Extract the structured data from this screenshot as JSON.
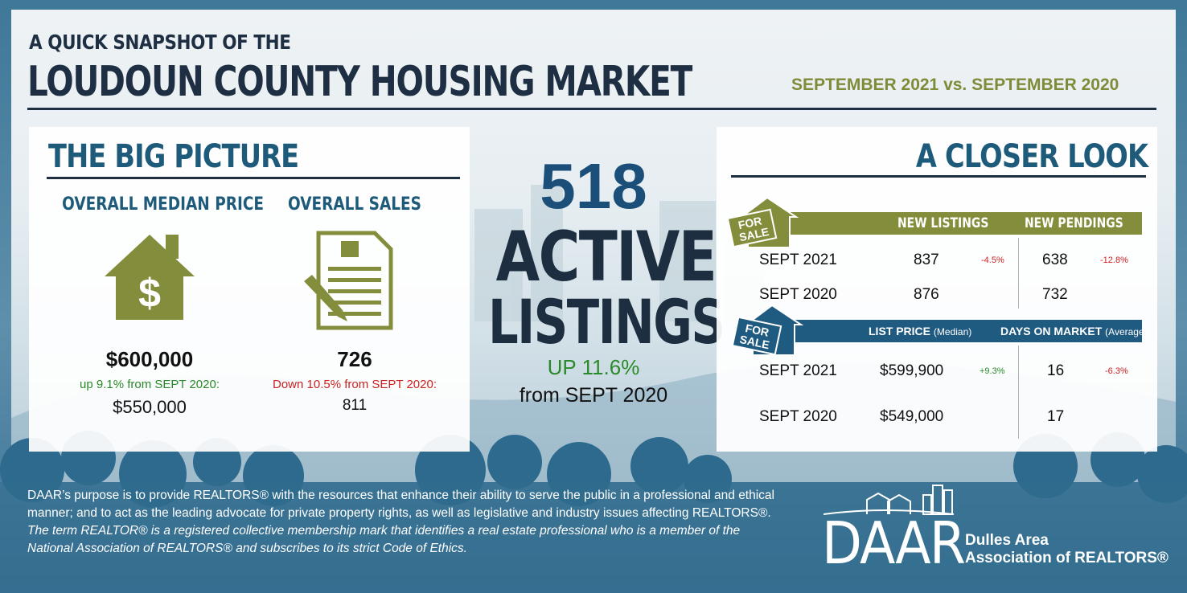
{
  "header": {
    "kicker": "A QUICK SNAPSHOT OF THE",
    "title": "LOUDOUN COUNTY HOUSING MARKET",
    "date_range": "SEPTEMBER 2021 vs. SEPTEMBER 2020"
  },
  "big_picture": {
    "title": "THE BIG PICTURE",
    "median_price": {
      "heading": "OVERALL MEDIAN PRICE",
      "icon": "house-dollar-icon",
      "value": "$600,000",
      "change": "up 9.1% from SEPT 2020:",
      "previous": "$550,000"
    },
    "sales": {
      "heading": "OVERALL SALES",
      "icon": "document-pen-icon",
      "value": "726",
      "change": "Down 10.5% from SEPT 2020:",
      "previous": "811"
    }
  },
  "active_listings": {
    "number": "518",
    "word1": "ACTIVE",
    "word2": "LISTINGS",
    "change": "UP 11.6%",
    "from": "from SEPT 2020"
  },
  "closer_look": {
    "title": "A CLOSER LOOK",
    "sign_text_1": "FOR",
    "sign_text_2": "SALE",
    "listings_table": {
      "col1": "NEW LISTINGS",
      "col2": "NEW PENDINGS",
      "rows": [
        {
          "label": "SEPT 2021",
          "new_listings": "837",
          "listings_change": "-4.5%",
          "new_pendings": "638",
          "pendings_change": "-12.8%"
        },
        {
          "label": "SEPT 2020",
          "new_listings": "876",
          "listings_change": "",
          "new_pendings": "732",
          "pendings_change": ""
        }
      ]
    },
    "price_table": {
      "col1": "LIST PRICE",
      "col1_note": "(Median)",
      "col2": "DAYS ON MARKET",
      "col2_note": "(Average)",
      "rows": [
        {
          "label": "SEPT 2021",
          "list_price": "$599,900",
          "price_change": "+9.3%",
          "days": "16",
          "days_change": "-6.3%"
        },
        {
          "label": "SEPT 2020",
          "list_price": "$549,000",
          "price_change": "",
          "days": "17",
          "days_change": ""
        }
      ]
    }
  },
  "footer": {
    "mission_1": "DAAR’s purpose is to provide REALTORS® with the resources that enhance their ability to serve the public in a professional and ethical manner; and to act as the leading advocate for private property rights, as well as legislative and industry issues affecting REALTORS®.",
    "mission_2": "The term REALTOR® is a registered collective membership mark that identifies a real estate professional who is a member of the National Association of REALTORS® and subscribes to its strict Code of Ethics.",
    "logo_letters": "DAAR",
    "logo_line1": "Dulles Area",
    "logo_line2": "Association of REALTORS®"
  },
  "colors": {
    "navy": "#1e2f44",
    "teal_blue": "#1e5b7b",
    "olive": "#848d3b",
    "up_green": "#2a8a2a",
    "down_red": "#cc2222"
  }
}
